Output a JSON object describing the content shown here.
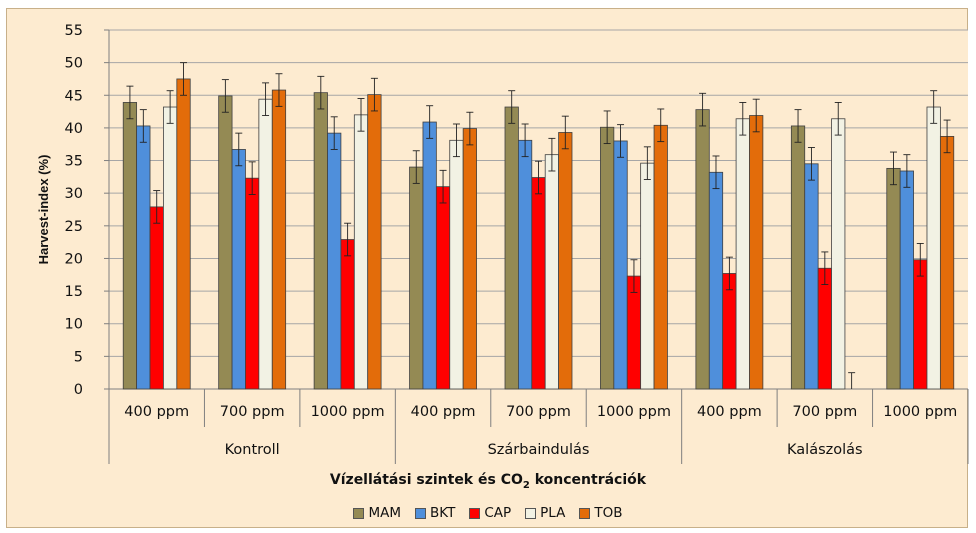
{
  "chart_data": {
    "type": "bar",
    "ylabel": "Harvest-index (%)",
    "ylim": [
      0,
      55
    ],
    "yticks": [
      "0",
      "5",
      "10",
      "15",
      "20",
      "25",
      "30",
      "35",
      "40",
      "45",
      "50",
      "55"
    ],
    "grid": true,
    "xlabel_main": "Vízellátási szintek és CO",
    "xlabel_sub": "2",
    "xlabel_end": " koncentrációk",
    "groups": [
      "Kontroll",
      "Szárbaindulás",
      "Kalászolás"
    ],
    "categories": [
      "400 ppm",
      "700 ppm",
      "1000 ppm",
      "400 ppm",
      "700 ppm",
      "1000 ppm",
      "400 ppm",
      "700 ppm",
      "1000 ppm"
    ],
    "legend_position": "bottom",
    "series": [
      {
        "name": "MAM",
        "color": "#948a54",
        "values": [
          43.9,
          44.9,
          45.4,
          34.0,
          43.2,
          40.1,
          42.8,
          40.3,
          33.8
        ],
        "errors": [
          2.5,
          2.5,
          2.5,
          2.5,
          2.5,
          2.5,
          2.5,
          2.5,
          2.5
        ]
      },
      {
        "name": "BKT",
        "color": "#4f8fdb",
        "values": [
          40.3,
          36.7,
          39.2,
          40.9,
          38.1,
          38.0,
          33.2,
          34.5,
          33.4
        ],
        "errors": [
          2.5,
          2.5,
          2.5,
          2.5,
          2.5,
          2.5,
          2.5,
          2.5,
          2.5
        ]
      },
      {
        "name": "CAP",
        "color": "#ff0000",
        "values": [
          27.9,
          32.3,
          22.9,
          31.0,
          32.4,
          17.3,
          17.7,
          18.5,
          19.8
        ],
        "errors": [
          2.5,
          2.5,
          2.5,
          2.5,
          2.5,
          2.5,
          2.5,
          2.5,
          2.5
        ]
      },
      {
        "name": "PLA",
        "color": "#f2f2e4",
        "values": [
          43.2,
          44.4,
          42.0,
          38.1,
          35.9,
          34.6,
          41.4,
          41.4,
          43.2
        ],
        "errors": [
          2.5,
          2.5,
          2.5,
          2.5,
          2.5,
          2.5,
          2.5,
          2.5,
          2.5
        ]
      },
      {
        "name": "TOB",
        "color": "#e36c0a",
        "values": [
          47.5,
          45.8,
          45.1,
          39.9,
          39.3,
          40.4,
          41.9,
          null,
          38.7
        ],
        "errors": [
          2.5,
          2.5,
          2.5,
          2.5,
          2.5,
          2.5,
          2.5,
          2.5,
          2.5
        ]
      }
    ]
  }
}
